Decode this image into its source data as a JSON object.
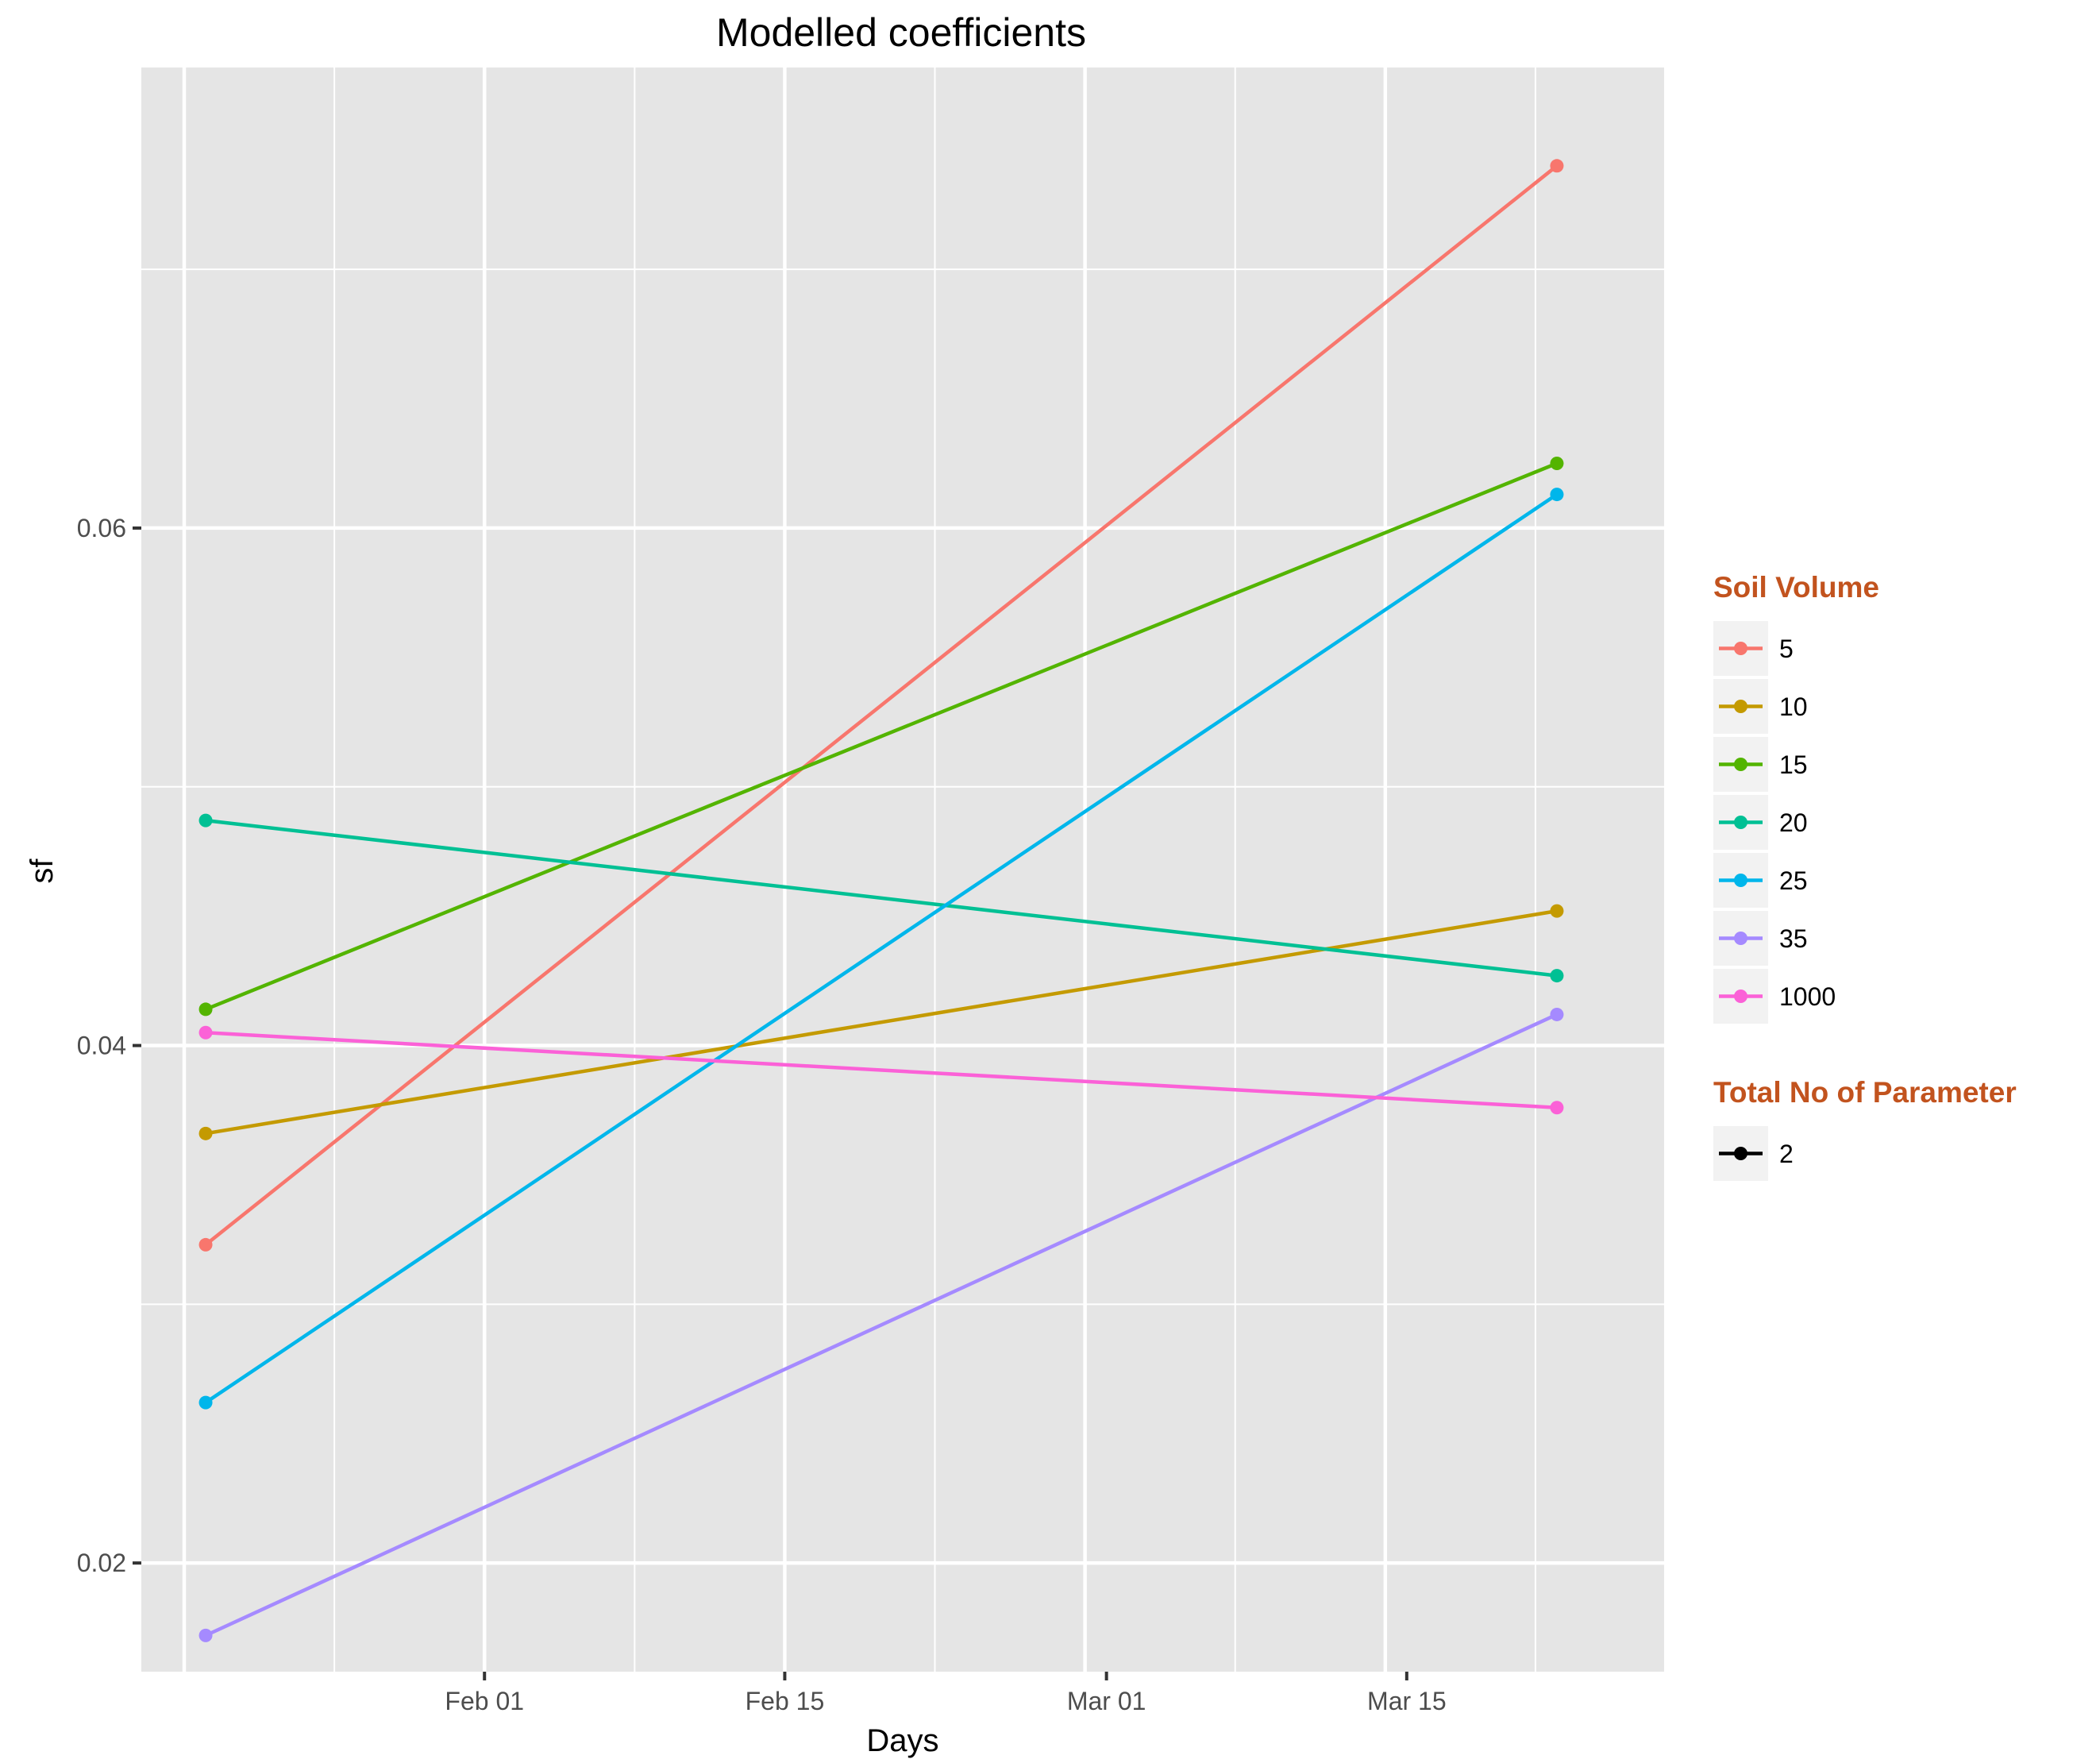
{
  "chart_data": {
    "type": "line",
    "title": "Modelled coefficients",
    "xlabel": "Days",
    "ylabel": "sf",
    "x_axis": {
      "type": "date",
      "range": [
        "2016-01-16",
        "2016-03-27"
      ],
      "ticks": [
        {
          "date": "2016-02-01",
          "label": "Feb 01"
        },
        {
          "date": "2016-02-15",
          "label": "Feb 15"
        },
        {
          "date": "2016-03-01",
          "label": "Mar 01"
        },
        {
          "date": "2016-03-15",
          "label": "Mar 15"
        }
      ]
    },
    "y_axis": {
      "range": [
        0.0158,
        0.0778
      ],
      "ticks": [
        {
          "value": 0.02,
          "label": "0.02"
        },
        {
          "value": 0.04,
          "label": "0.04"
        },
        {
          "value": 0.06,
          "label": "0.06"
        }
      ]
    },
    "grid": true,
    "legend_position": "right",
    "legends": [
      {
        "title": "Soil Volume",
        "labels": [
          "5",
          "10",
          "15",
          "20",
          "25",
          "35",
          "1000"
        ]
      },
      {
        "title": "Total No of Parameter",
        "labels": [
          "2"
        ]
      }
    ],
    "series": [
      {
        "name": "5",
        "color": "#F8766D",
        "points": [
          {
            "x": "2016-01-19",
            "y": 0.0323
          },
          {
            "x": "2016-03-22",
            "y": 0.074
          }
        ]
      },
      {
        "name": "10",
        "color": "#C49A00",
        "points": [
          {
            "x": "2016-01-19",
            "y": 0.0366
          },
          {
            "x": "2016-03-22",
            "y": 0.0452
          }
        ]
      },
      {
        "name": "15",
        "color": "#53B400",
        "points": [
          {
            "x": "2016-01-19",
            "y": 0.0414
          },
          {
            "x": "2016-03-22",
            "y": 0.0625
          }
        ]
      },
      {
        "name": "20",
        "color": "#00C094",
        "points": [
          {
            "x": "2016-01-19",
            "y": 0.0487
          },
          {
            "x": "2016-03-22",
            "y": 0.0427
          }
        ]
      },
      {
        "name": "25",
        "color": "#00B6EB",
        "points": [
          {
            "x": "2016-01-19",
            "y": 0.0262
          },
          {
            "x": "2016-03-22",
            "y": 0.0613
          }
        ]
      },
      {
        "name": "35",
        "color": "#A58AFF",
        "points": [
          {
            "x": "2016-01-19",
            "y": 0.0172
          },
          {
            "x": "2016-03-22",
            "y": 0.0412
          }
        ]
      },
      {
        "name": "1000",
        "color": "#FB61D7",
        "points": [
          {
            "x": "2016-01-19",
            "y": 0.0405
          },
          {
            "x": "2016-03-22",
            "y": 0.0376
          }
        ]
      }
    ],
    "colors": {
      "panel_background": "#E5E5E5",
      "grid_line": "#FFFFFF",
      "legend_title": "#C2531E",
      "legend_key_background": "#F2F2F2"
    }
  }
}
